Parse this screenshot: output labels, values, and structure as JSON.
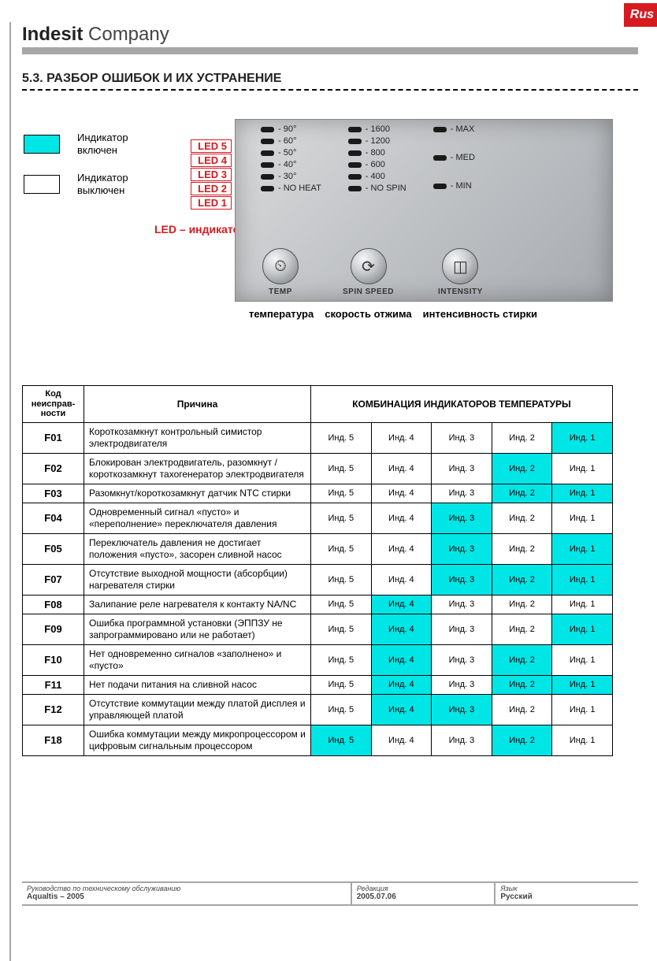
{
  "colors": {
    "highlight": "#00e6e6",
    "rus_bg": "#d71920",
    "rule_grey": "#a6a6a6"
  },
  "rus_label": "Rus",
  "brand": {
    "bold": "Indesit",
    "light": " Company"
  },
  "section_title": "5.3. РАЗБОР ОШИБОК И ИХ УСТРАНЕНИЕ",
  "legend": {
    "on_label": "Индикатор включен",
    "off_label": "Индикатор выключен"
  },
  "led_labels": [
    "LED 5",
    "LED 4",
    "LED 3",
    "LED 2",
    "LED 1"
  ],
  "led_caption": "LED – индикатор",
  "panel": {
    "col1": [
      "- 90°",
      "- 60°",
      "- 50°",
      "- 40°",
      "- 30°",
      "- NO HEAT"
    ],
    "col2": [
      "- 1600",
      "- 1200",
      "- 800",
      "- 600",
      "- 400",
      "- NO SPIN"
    ],
    "col3": [
      "- MAX",
      "- MED",
      "- MIN"
    ],
    "btns": [
      {
        "icon": "⏲",
        "label": "TEMP"
      },
      {
        "icon": "⟳",
        "label": "SPIN SPEED"
      },
      {
        "icon": "◫",
        "label": "INTENSITY"
      }
    ],
    "caption": [
      "температура",
      "скорость отжима",
      "интенсивность стирки"
    ]
  },
  "table": {
    "head": {
      "code": "Код неисправ-ности",
      "cause": "Причина",
      "combo": "КОМБИНАЦИЯ ИНДИКАТОРОВ ТЕМПЕРАТУРЫ"
    },
    "ind_labels": [
      "Инд. 5",
      "Инд. 4",
      "Инд. 3",
      "Инд. 2",
      "Инд. 1"
    ],
    "rows": [
      {
        "code": "F01",
        "cause": "Короткозамкнут контрольный симистор электродвигателя",
        "on": [
          0,
          0,
          0,
          0,
          1
        ]
      },
      {
        "code": "F02",
        "cause": "Блокирован электродвигатель, разомкнут / короткозамкнут тахогенератор электродвигателя",
        "on": [
          0,
          0,
          0,
          1,
          0
        ]
      },
      {
        "code": "F03",
        "cause": "Разомкнут/короткозамкнут датчик NTC стирки",
        "on": [
          0,
          0,
          0,
          1,
          1
        ]
      },
      {
        "code": "F04",
        "cause": "Одновременный сигнал «пусто» и «переполнение» переключателя давления",
        "on": [
          0,
          0,
          1,
          0,
          0
        ]
      },
      {
        "code": "F05",
        "cause": "Переключатель давления не достигает положения «пусто», засорен сливной насос",
        "on": [
          0,
          0,
          1,
          0,
          1
        ]
      },
      {
        "code": "F07",
        "cause": "Отсутствие выходной мощности (абсорбции) нагревателя стирки",
        "on": [
          0,
          0,
          1,
          1,
          1
        ]
      },
      {
        "code": "F08",
        "cause": "Залипание реле нагревателя к контакту NA/NC",
        "on": [
          0,
          1,
          0,
          0,
          0
        ]
      },
      {
        "code": "F09",
        "cause": "Ошибка программной установки (ЭППЗУ не запрограммировано или не работает)",
        "on": [
          0,
          1,
          0,
          0,
          1
        ]
      },
      {
        "code": "F10",
        "cause": "Нет одновременно сигналов «заполнено» и «пусто»",
        "on": [
          0,
          1,
          0,
          1,
          0
        ]
      },
      {
        "code": "F11",
        "cause": "Нет подачи питания на сливной насос",
        "on": [
          0,
          1,
          0,
          1,
          1
        ]
      },
      {
        "code": "F12",
        "cause": "Отсутствие коммутации между платой дисплея и управляющей платой",
        "on": [
          0,
          1,
          1,
          0,
          0
        ]
      },
      {
        "code": "F18",
        "cause": "Ошибка коммутации между микропроцессором и цифровым сигнальным процессором",
        "on": [
          1,
          0,
          0,
          1,
          0
        ]
      }
    ]
  },
  "footer": {
    "c1_lbl": "Руководство по техническому обслуживанию",
    "c1_val": "Aqualtis – 2005",
    "c2_lbl": "Редакция",
    "c2_val": "2005.07.06",
    "c3_lbl": "Язык",
    "c3_val": "Русский"
  }
}
